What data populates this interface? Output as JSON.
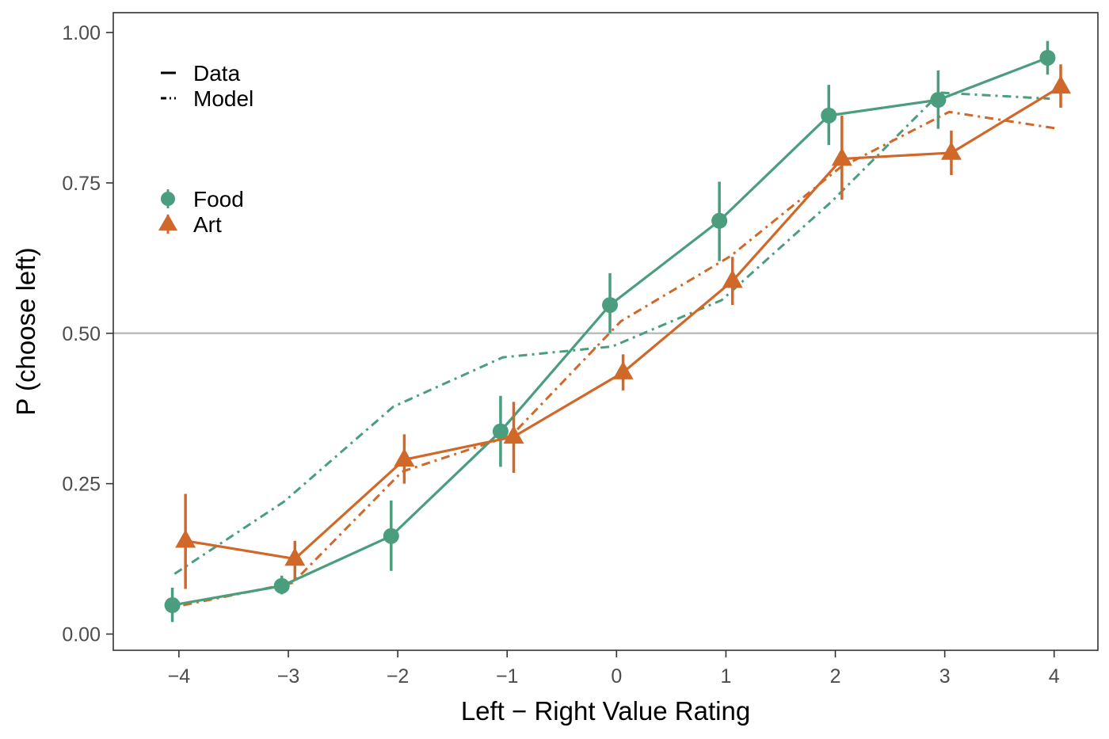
{
  "chart_data": {
    "type": "line",
    "xlabel": "Left − Right Value Rating",
    "ylabel": "P (choose left)",
    "xlim": [
      -4.6,
      4.4
    ],
    "ylim": [
      -0.027,
      1.033
    ],
    "x_ticks": [
      -4,
      -3,
      -2,
      -1,
      0,
      1,
      2,
      3,
      4
    ],
    "x_tick_labels": [
      "−4",
      "−3",
      "−2",
      "−1",
      "0",
      "1",
      "2",
      "3",
      "4"
    ],
    "y_ticks": [
      0,
      0.25,
      0.5,
      0.75,
      1
    ],
    "y_tick_labels": [
      "0.00",
      "0.25",
      "0.50",
      "0.75",
      "1.00"
    ],
    "reference_line": {
      "y": 0.5,
      "color": "#bdbdbd"
    },
    "grid": false,
    "legend": {
      "placement": "top-left",
      "linetype_entries": [
        {
          "label": "Data",
          "dash": "solid"
        },
        {
          "label": "Model",
          "dash": "dotdash"
        }
      ],
      "group_entries": [
        {
          "label": "Food",
          "shape": "circle",
          "color": "#4a9e7d"
        },
        {
          "label": "Art",
          "shape": "triangle",
          "color": "#d0682a"
        }
      ]
    },
    "series": [
      {
        "group": "Food",
        "kind": "data",
        "color": "#4a9e7d",
        "marker": "circle",
        "x": [
          -4,
          -3,
          -2,
          -1,
          0,
          1,
          2,
          3,
          4
        ],
        "y": [
          0.048,
          0.08,
          0.163,
          0.337,
          0.547,
          0.687,
          0.862,
          0.888,
          0.958
        ],
        "err_low": [
          0.02,
          0.066,
          0.105,
          0.278,
          0.5,
          0.62,
          0.813,
          0.84,
          0.93
        ],
        "err_high": [
          0.077,
          0.097,
          0.222,
          0.396,
          0.6,
          0.752,
          0.913,
          0.937,
          0.986
        ]
      },
      {
        "group": "Art",
        "kind": "data",
        "color": "#d0682a",
        "marker": "triangle",
        "x": [
          -4,
          -3,
          -2,
          -1,
          0,
          1,
          2,
          3,
          4
        ],
        "y": [
          0.155,
          0.125,
          0.29,
          0.328,
          0.435,
          0.587,
          0.79,
          0.8,
          0.91
        ],
        "err_low": [
          0.075,
          0.09,
          0.25,
          0.268,
          0.405,
          0.547,
          0.722,
          0.763,
          0.875
        ],
        "err_high": [
          0.233,
          0.155,
          0.332,
          0.386,
          0.465,
          0.627,
          0.862,
          0.837,
          0.947
        ]
      },
      {
        "group": "Food",
        "kind": "model",
        "color": "#4a9e7d",
        "x": [
          -4,
          -3,
          -2,
          -1,
          0,
          1,
          2,
          3,
          4
        ],
        "y": [
          0.1,
          0.22,
          0.378,
          0.46,
          0.478,
          0.555,
          0.718,
          0.9,
          0.89
        ]
      },
      {
        "group": "Art",
        "kind": "model",
        "color": "#d0682a",
        "x": [
          -4,
          -3,
          -2,
          -1,
          0,
          1,
          2,
          3,
          4
        ],
        "y": [
          0.048,
          0.085,
          0.27,
          0.33,
          0.52,
          0.628,
          0.775,
          0.868,
          0.84
        ]
      }
    ]
  }
}
